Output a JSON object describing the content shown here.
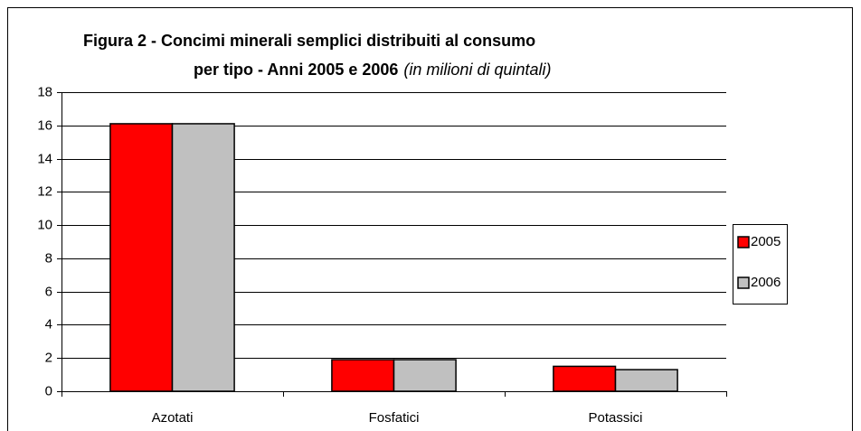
{
  "chart_data": {
    "type": "bar",
    "title": [
      "Figura 2 - Concimi minerali semplici distribuiti al consumo",
      "per tipo  - Anni  2005 e 2006"
    ],
    "subtitle": "(in milioni di quintali)",
    "categories": [
      "Azotati",
      "Fosfatici",
      "Potassici"
    ],
    "series": [
      {
        "name": "2005",
        "color": "#ff0000",
        "values": [
          16.1,
          1.9,
          1.5
        ]
      },
      {
        "name": "2006",
        "color": "#c0c0c0",
        "values": [
          16.1,
          1.9,
          1.3
        ]
      }
    ],
    "ylim": [
      0,
      18
    ],
    "yticks": [
      0,
      2,
      4,
      6,
      8,
      10,
      12,
      14,
      16,
      18
    ],
    "grid": true,
    "legend": "right"
  }
}
